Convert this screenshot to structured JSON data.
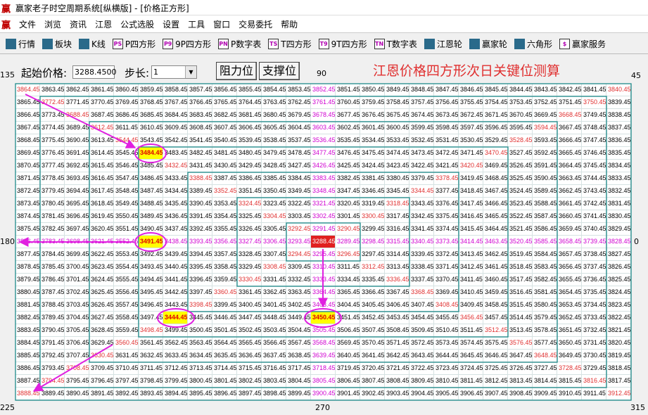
{
  "window": {
    "logo": "赢",
    "title": "赢家老子时空周期系统[纵横版] - [价格正方形]"
  },
  "menu": [
    "文件",
    "浏览",
    "资讯",
    "江恩",
    "公式选股",
    "设置",
    "工具",
    "窗口",
    "交易委托",
    "帮助"
  ],
  "toolbar": [
    {
      "label": "行情"
    },
    {
      "label": "板块"
    },
    {
      "label": "K线"
    },
    {
      "icon": "PS",
      "label": "P四方形"
    },
    {
      "icon": "P9",
      "label": "9P四方形"
    },
    {
      "icon": "PN",
      "label": "P数字表"
    },
    {
      "icon": "TS",
      "label": "T四方形"
    },
    {
      "icon": "T9",
      "label": "9T四方形"
    },
    {
      "icon": "TN",
      "label": "T数字表"
    },
    {
      "label": "江恩轮"
    },
    {
      "label": "赢家轮"
    },
    {
      "label": "六角形"
    },
    {
      "icon": "$",
      "label": "赢家服务"
    }
  ],
  "controls": {
    "start_label": "起始价格:",
    "start_value": "3288.4500",
    "step_label": "步长:",
    "step_value": "1",
    "buttons": [
      "阻力位",
      "支撑位"
    ]
  },
  "heading": "江恩价格四方形次日关键位测算",
  "angles": {
    "top_left": "135",
    "top": "90",
    "top_right": "45",
    "left": "180",
    "right": "0",
    "bottom_left": "225",
    "bottom": "270",
    "bottom_right": "315"
  },
  "grid": {
    "rows": [
      [
        3864.45,
        3863.45,
        3862.45,
        3861.45,
        3860.45,
        3859.45,
        3858.45,
        3857.45,
        3856.45,
        3855.45,
        3854.45,
        3853.45,
        3852.45,
        3851.45,
        3850.45,
        3849.45,
        3848.45,
        3847.45,
        3846.45,
        3845.45,
        3844.45,
        3843.45,
        3842.45,
        3841.45,
        3840.45
      ],
      [
        3865.45,
        3772.45,
        3771.45,
        3770.45,
        3769.45,
        3768.45,
        3767.45,
        3766.45,
        3765.45,
        3764.45,
        3763.45,
        3762.45,
        3761.45,
        3760.45,
        3759.45,
        3758.45,
        3757.45,
        3756.45,
        3755.45,
        3754.45,
        3753.45,
        3752.45,
        3751.45,
        3750.45,
        3839.45
      ],
      [
        3866.45,
        3773.45,
        3688.45,
        3687.45,
        3686.45,
        3685.45,
        3684.45,
        3683.45,
        3682.45,
        3681.45,
        3680.45,
        3679.45,
        3678.45,
        3677.45,
        3676.45,
        3675.45,
        3674.45,
        3673.45,
        3672.45,
        3671.45,
        3670.45,
        3669.45,
        3668.45,
        3749.45,
        3838.45
      ],
      [
        3867.45,
        3774.45,
        3689.45,
        3612.45,
        3611.45,
        3610.45,
        3609.45,
        3608.45,
        3607.45,
        3606.45,
        3605.45,
        3604.45,
        3603.45,
        3602.45,
        3601.45,
        3600.45,
        3599.45,
        3598.45,
        3597.45,
        3596.45,
        3595.45,
        3594.45,
        3667.45,
        3748.45,
        3837.45
      ],
      [
        3868.45,
        3775.45,
        3690.45,
        3613.45,
        3544.45,
        3543.45,
        3542.45,
        3541.45,
        3540.45,
        3539.45,
        3538.45,
        3537.45,
        3536.45,
        3535.45,
        3534.45,
        3533.45,
        3532.45,
        3531.45,
        3530.45,
        3529.45,
        3528.45,
        3593.45,
        3666.45,
        3747.45,
        3836.45
      ],
      [
        3869.45,
        3776.45,
        3691.45,
        3614.45,
        3545.45,
        3484.45,
        3483.45,
        3482.45,
        3481.45,
        3480.45,
        3479.45,
        3478.45,
        3477.45,
        3476.45,
        3475.45,
        3474.45,
        3473.45,
        3472.45,
        3471.45,
        3470.45,
        3527.45,
        3592.45,
        3665.45,
        3746.45,
        3835.45
      ],
      [
        3870.45,
        3777.45,
        3692.45,
        3615.45,
        3546.45,
        3485.45,
        3432.45,
        3431.45,
        3430.45,
        3429.45,
        3428.45,
        3427.45,
        3426.45,
        3425.45,
        3424.45,
        3423.45,
        3422.45,
        3421.45,
        3420.45,
        3469.45,
        3526.45,
        3591.45,
        3664.45,
        3745.45,
        3834.45
      ],
      [
        3871.45,
        3778.45,
        3693.45,
        3616.45,
        3547.45,
        3486.45,
        3433.45,
        3388.45,
        3387.45,
        3386.45,
        3385.45,
        3384.45,
        3383.45,
        3382.45,
        3381.45,
        3380.45,
        3379.45,
        3378.45,
        3419.45,
        3468.45,
        3525.45,
        3590.45,
        3663.45,
        3744.45,
        3833.45
      ],
      [
        3872.45,
        3779.45,
        3694.45,
        3617.45,
        3548.45,
        3487.45,
        3434.45,
        3389.45,
        3352.45,
        3351.45,
        3350.45,
        3349.45,
        3348.45,
        3347.45,
        3346.45,
        3345.45,
        3344.45,
        3377.45,
        3418.45,
        3467.45,
        3524.45,
        3589.45,
        3662.45,
        3743.45,
        3832.45
      ],
      [
        3873.45,
        3780.45,
        3695.45,
        3618.45,
        3549.45,
        3488.45,
        3435.45,
        3390.45,
        3353.45,
        3324.45,
        3323.45,
        3322.45,
        3321.45,
        3320.45,
        3319.45,
        3318.45,
        3343.45,
        3376.45,
        3417.45,
        3466.45,
        3523.45,
        3588.45,
        3661.45,
        3742.45,
        3831.45
      ],
      [
        3874.45,
        3781.45,
        3696.45,
        3619.45,
        3550.45,
        3489.45,
        3436.45,
        3391.45,
        3354.45,
        3325.45,
        3304.45,
        3303.45,
        3302.45,
        3301.45,
        3300.45,
        3317.45,
        3342.45,
        3375.45,
        3416.45,
        3465.45,
        3522.45,
        3587.45,
        3660.45,
        3741.45,
        3830.45
      ],
      [
        3875.45,
        3782.45,
        3697.45,
        3620.45,
        3551.45,
        3490.45,
        3437.45,
        3392.45,
        3355.45,
        3326.45,
        3305.45,
        3292.45,
        3291.45,
        3290.45,
        3299.45,
        3316.45,
        3341.45,
        3374.45,
        3415.45,
        3464.45,
        3521.45,
        3586.45,
        3659.45,
        3740.45,
        3829.45
      ],
      [
        3876.45,
        3783.45,
        3698.45,
        3621.45,
        3552.45,
        3491.45,
        3438.45,
        3393.45,
        3356.45,
        3327.45,
        3306.45,
        3293.45,
        3288.45,
        3289.45,
        3298.45,
        3315.45,
        3340.45,
        3373.45,
        3414.45,
        3463.45,
        3520.45,
        3585.45,
        3658.45,
        3739.45,
        3828.45
      ],
      [
        3877.45,
        3784.45,
        3699.45,
        3622.45,
        3553.45,
        3492.45,
        3439.45,
        3394.45,
        3357.45,
        3328.45,
        3307.45,
        3294.45,
        3295.45,
        3296.45,
        3297.45,
        3314.45,
        3339.45,
        3372.45,
        3413.45,
        3462.45,
        3519.45,
        3584.45,
        3657.45,
        3738.45,
        3827.45
      ],
      [
        3878.45,
        3785.45,
        3700.45,
        3623.45,
        3554.45,
        3493.45,
        3440.45,
        3395.45,
        3358.45,
        3329.45,
        3308.45,
        3309.45,
        3310.45,
        3311.45,
        3312.45,
        3313.45,
        3338.45,
        3371.45,
        3412.45,
        3461.45,
        3518.45,
        3583.45,
        3656.45,
        3737.45,
        3826.45
      ],
      [
        3879.45,
        3786.45,
        3701.45,
        3624.45,
        3555.45,
        3494.45,
        3441.45,
        3396.45,
        3359.45,
        3330.45,
        3331.45,
        3332.45,
        3333.45,
        3334.45,
        3335.45,
        3336.45,
        3337.45,
        3370.45,
        3411.45,
        3460.45,
        3517.45,
        3582.45,
        3655.45,
        3736.45,
        3825.45
      ],
      [
        3880.45,
        3787.45,
        3702.45,
        3625.45,
        3556.45,
        3495.45,
        3442.45,
        3397.45,
        3360.45,
        3361.45,
        3362.45,
        3363.45,
        3364.45,
        3365.45,
        3366.45,
        3367.45,
        3368.45,
        3369.45,
        3410.45,
        3459.45,
        3516.45,
        3581.45,
        3654.45,
        3735.45,
        3824.45
      ],
      [
        3881.45,
        3788.45,
        3703.45,
        3626.45,
        3557.45,
        3496.45,
        3443.45,
        3398.45,
        3399.45,
        3400.45,
        3401.45,
        3402.45,
        3403.45,
        3404.45,
        3405.45,
        3406.45,
        3407.45,
        3408.45,
        3409.45,
        3458.45,
        3515.45,
        3580.45,
        3653.45,
        3734.45,
        3823.45
      ],
      [
        3882.45,
        3789.45,
        3704.45,
        3627.45,
        3558.45,
        3497.45,
        3444.45,
        3445.45,
        3446.45,
        3447.45,
        3448.45,
        3449.45,
        3450.45,
        3451.45,
        3452.45,
        3453.45,
        3454.45,
        3455.45,
        3456.45,
        3457.45,
        3514.45,
        3579.45,
        3652.45,
        3733.45,
        3822.45
      ],
      [
        3883.45,
        3790.45,
        3705.45,
        3628.45,
        3559.45,
        3498.45,
        3499.45,
        3500.45,
        3501.45,
        3502.45,
        3503.45,
        3504.45,
        3505.45,
        3506.45,
        3507.45,
        3508.45,
        3509.45,
        3510.45,
        3511.45,
        3512.45,
        3513.45,
        3578.45,
        3651.45,
        3732.45,
        3821.45
      ],
      [
        3884.45,
        3791.45,
        3706.45,
        3629.45,
        3560.45,
        3561.45,
        3562.45,
        3563.45,
        3564.45,
        3565.45,
        3566.45,
        3567.45,
        3568.45,
        3569.45,
        3570.45,
        3571.45,
        3572.45,
        3573.45,
        3574.45,
        3575.45,
        3576.45,
        3577.45,
        3650.45,
        3731.45,
        3820.45
      ],
      [
        3885.45,
        3792.45,
        3707.45,
        3630.45,
        3631.45,
        3632.45,
        3633.45,
        3634.45,
        3635.45,
        3636.45,
        3637.45,
        3638.45,
        3639.45,
        3640.45,
        3641.45,
        3642.45,
        3643.45,
        3644.45,
        3645.45,
        3646.45,
        3647.45,
        3648.45,
        3649.45,
        3730.45,
        3819.45
      ],
      [
        3886.45,
        3793.45,
        3708.45,
        3709.45,
        3710.45,
        3711.45,
        3712.45,
        3713.45,
        3714.45,
        3715.45,
        3716.45,
        3717.45,
        3718.45,
        3719.45,
        3720.45,
        3721.45,
        3722.45,
        3723.45,
        3724.45,
        3725.45,
        3726.45,
        3727.45,
        3728.45,
        3729.45,
        3818.45
      ],
      [
        3887.45,
        3794.45,
        3795.45,
        3796.45,
        3797.45,
        3798.45,
        3799.45,
        3800.45,
        3801.45,
        3802.45,
        3803.45,
        3804.45,
        3805.45,
        3806.45,
        3807.45,
        3808.45,
        3809.45,
        3810.45,
        3811.45,
        3812.45,
        3813.45,
        3814.45,
        3815.45,
        3816.45,
        3817.45
      ],
      [
        3888.45,
        3889.45,
        3890.45,
        3891.45,
        3892.45,
        3893.45,
        3894.45,
        3895.45,
        3896.45,
        3897.45,
        3898.45,
        3899.45,
        3900.45,
        3901.45,
        3902.45,
        3903.45,
        3904.45,
        3905.45,
        3906.45,
        3907.45,
        3908.45,
        3909.45,
        3910.45,
        3911.45,
        3912.45
      ]
    ]
  }
}
